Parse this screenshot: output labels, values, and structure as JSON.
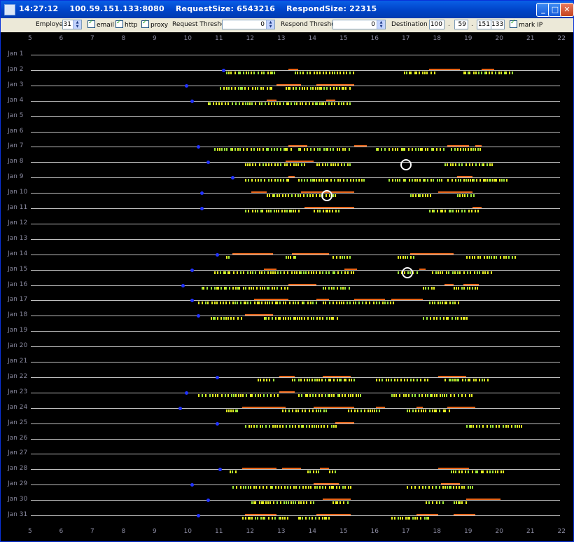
{
  "window": {
    "time": "14:27:12",
    "address": "100.59.151.133:8080",
    "request_size": "RequestSize: 6543216",
    "respond_size": "RespondSize: 22315",
    "minimize_label": "_",
    "maximize_label": "□",
    "close_label": "✕"
  },
  "toolbar": {
    "employee_label": "Employee",
    "employee_value": "31",
    "email_label": "email",
    "http_label": "http",
    "proxy_label": "proxy",
    "request_threshold_label": "Request Threshold",
    "request_threshold_value": "0",
    "respond_threshold_label": "Respond Threshold",
    "respond_threshold_value": "0",
    "destination_ip_label": "Destination IP",
    "ip_octets": [
      "100",
      "59",
      "151",
      "133"
    ],
    "ip_separator": ".",
    "mark_ip_label": "mark IP"
  },
  "axis": {
    "hours": [
      "5",
      "6",
      "7",
      "8",
      "9",
      "10",
      "11",
      "12",
      "13",
      "14",
      "15",
      "16",
      "17",
      "18",
      "19",
      "20",
      "21",
      "22"
    ]
  },
  "days": [
    {
      "label": "Jan 1",
      "start": null,
      "segs": [],
      "events": []
    },
    {
      "label": "Jan 2",
      "start": 11.2,
      "segs": [
        [
          13.3,
          13.6
        ],
        [
          17.8,
          18.8
        ],
        [
          19.5,
          19.9
        ]
      ],
      "events": [
        [
          11.3,
          12.9
        ],
        [
          13.5,
          15.4
        ],
        [
          17.0,
          18.0
        ],
        [
          18.9,
          20.5
        ]
      ]
    },
    {
      "label": "Jan 3",
      "start": 10.0,
      "segs": [
        [
          12.9,
          13.7
        ],
        [
          14.2,
          15.4
        ]
      ],
      "events": [
        [
          11.1,
          12.8
        ],
        [
          13.2,
          15.3
        ]
      ]
    },
    {
      "label": "Jan 4",
      "start": 10.2,
      "segs": [
        [
          12.6,
          12.9
        ],
        [
          14.5,
          14.8
        ]
      ],
      "events": [
        [
          10.7,
          15.3
        ]
      ]
    },
    {
      "label": "Jan 5",
      "start": null,
      "segs": [],
      "events": []
    },
    {
      "label": "Jan 6",
      "start": null,
      "segs": [],
      "events": []
    },
    {
      "label": "Jan 7",
      "start": 10.4,
      "segs": [
        [
          13.3,
          13.9
        ],
        [
          15.4,
          15.8
        ],
        [
          18.4,
          19.1
        ],
        [
          19.3,
          19.5
        ]
      ],
      "events": [
        [
          10.9,
          13.4
        ],
        [
          13.6,
          15.3
        ],
        [
          16.1,
          18.3
        ],
        [
          18.5,
          19.5
        ]
      ]
    },
    {
      "label": "Jan 8",
      "start": 10.7,
      "segs": [
        [
          13.2,
          14.1
        ]
      ],
      "events": [
        [
          11.9,
          13.9
        ],
        [
          14.2,
          15.3
        ],
        [
          18.3,
          19.8
        ]
      ]
    },
    {
      "label": "Jan 9",
      "start": 11.5,
      "segs": [
        [
          13.3,
          13.5
        ],
        [
          18.7,
          19.2
        ]
      ],
      "events": [
        [
          11.9,
          13.3
        ],
        [
          13.6,
          15.7
        ],
        [
          16.5,
          18.2
        ],
        [
          18.4,
          20.3
        ]
      ]
    },
    {
      "label": "Jan 10",
      "start": 10.5,
      "segs": [
        [
          12.1,
          12.6
        ],
        [
          13.7,
          15.4
        ],
        [
          18.1,
          19.2
        ]
      ],
      "events": [
        [
          12.6,
          14.8
        ],
        [
          17.2,
          17.9
        ],
        [
          18.7,
          19.3
        ]
      ]
    },
    {
      "label": "Jan 11",
      "start": 10.5,
      "segs": [
        [
          13.8,
          15.4
        ],
        [
          19.2,
          19.5
        ]
      ],
      "events": [
        [
          11.9,
          13.6
        ],
        [
          14.1,
          14.9
        ],
        [
          17.8,
          19.4
        ]
      ]
    },
    {
      "label": "Jan 12",
      "start": null,
      "segs": [],
      "events": []
    },
    {
      "label": "Jan 13",
      "start": null,
      "segs": [],
      "events": []
    },
    {
      "label": "Jan 14",
      "start": 11.0,
      "segs": [
        [
          11.5,
          12.8
        ],
        [
          13.4,
          14.6
        ],
        [
          17.2,
          18.6
        ]
      ],
      "events": [
        [
          11.3,
          11.4
        ],
        [
          13.2,
          13.5
        ],
        [
          14.7,
          15.3
        ],
        [
          16.8,
          17.3
        ],
        [
          19.0,
          20.6
        ]
      ]
    },
    {
      "label": "Jan 15",
      "start": 10.2,
      "segs": [
        [
          12.5,
          12.9
        ],
        [
          15.1,
          15.5
        ],
        [
          17.5,
          17.7
        ]
      ],
      "events": [
        [
          10.9,
          15.4
        ],
        [
          16.8,
          17.4
        ],
        [
          17.9,
          19.8
        ]
      ]
    },
    {
      "label": "Jan 16",
      "start": 9.9,
      "segs": [
        [
          13.3,
          14.2
        ],
        [
          18.3,
          18.6
        ],
        [
          18.9,
          19.4
        ]
      ],
      "events": [
        [
          10.5,
          13.3
        ],
        [
          14.4,
          15.3
        ],
        [
          17.6,
          18.0
        ],
        [
          18.6,
          19.4
        ]
      ]
    },
    {
      "label": "Jan 17",
      "start": 10.2,
      "segs": [
        [
          12.2,
          13.3
        ],
        [
          14.2,
          14.6
        ],
        [
          15.4,
          16.4
        ],
        [
          16.6,
          17.6
        ]
      ],
      "events": [
        [
          10.4,
          14.2
        ],
        [
          14.4,
          16.7
        ],
        [
          17.8,
          18.8
        ]
      ]
    },
    {
      "label": "Jan 18",
      "start": 10.4,
      "segs": [
        [
          11.9,
          12.8
        ]
      ],
      "events": [
        [
          10.8,
          11.8
        ],
        [
          12.5,
          14.9
        ],
        [
          17.6,
          18.7
        ],
        [
          18.7,
          19.0
        ]
      ]
    },
    {
      "label": "Jan 19",
      "start": null,
      "segs": [],
      "events": []
    },
    {
      "label": "Jan 20",
      "start": null,
      "segs": [],
      "events": []
    },
    {
      "label": "Jan 21",
      "start": null,
      "segs": [],
      "events": []
    },
    {
      "label": "Jan 22",
      "start": 11.0,
      "segs": [
        [
          13.0,
          13.5
        ],
        [
          14.4,
          15.3
        ],
        [
          18.1,
          19.0
        ]
      ],
      "events": [
        [
          12.3,
          12.8
        ],
        [
          13.4,
          15.4
        ],
        [
          16.1,
          17.8
        ],
        [
          18.3,
          19.7
        ]
      ]
    },
    {
      "label": "Jan 23",
      "start": 10.0,
      "segs": [
        [
          13.0,
          13.5
        ]
      ],
      "events": [
        [
          10.4,
          13.0
        ],
        [
          13.6,
          15.6
        ],
        [
          16.6,
          19.2
        ]
      ]
    },
    {
      "label": "Jan 24",
      "start": 9.8,
      "segs": [
        [
          11.8,
          13.2
        ],
        [
          14.1,
          15.4
        ],
        [
          16.1,
          16.4
        ],
        [
          17.4,
          17.6
        ],
        [
          18.4,
          19.3
        ]
      ],
      "events": [
        [
          11.3,
          11.7
        ],
        [
          13.1,
          14.5
        ],
        [
          15.2,
          16.2
        ],
        [
          17.1,
          18.5
        ]
      ]
    },
    {
      "label": "Jan 25",
      "start": 11.0,
      "segs": [
        [
          14.8,
          15.4
        ]
      ],
      "events": [
        [
          11.9,
          14.9
        ],
        [
          19.0,
          20.8
        ]
      ]
    },
    {
      "label": "Jan 26",
      "start": null,
      "segs": [],
      "events": []
    },
    {
      "label": "Jan 27",
      "start": null,
      "segs": [],
      "events": []
    },
    {
      "label": "Jan 28",
      "start": 11.1,
      "segs": [
        [
          11.8,
          12.9
        ],
        [
          13.1,
          13.7
        ],
        [
          14.3,
          14.6
        ],
        [
          18.1,
          19.1
        ]
      ],
      "events": [
        [
          11.4,
          11.6
        ],
        [
          13.9,
          14.3
        ],
        [
          14.6,
          14.9
        ],
        [
          18.5,
          20.2
        ]
      ]
    },
    {
      "label": "Jan 29",
      "start": 10.2,
      "segs": [
        [
          14.1,
          14.9
        ],
        [
          18.2,
          18.8
        ]
      ],
      "events": [
        [
          11.5,
          15.3
        ],
        [
          17.1,
          19.2
        ]
      ]
    },
    {
      "label": "Jan 30",
      "start": 10.7,
      "segs": [
        [
          14.4,
          15.3
        ],
        [
          19.0,
          20.1
        ]
      ],
      "events": [
        [
          12.1,
          14.1
        ],
        [
          14.7,
          15.2
        ],
        [
          17.7,
          18.3
        ],
        [
          18.6,
          19.0
        ]
      ]
    },
    {
      "label": "Jan 31",
      "start": 10.4,
      "segs": [
        [
          11.9,
          12.9
        ],
        [
          14.2,
          15.3
        ],
        [
          17.4,
          18.1
        ],
        [
          18.6,
          19.3
        ]
      ],
      "events": [
        [
          11.8,
          13.3
        ],
        [
          13.6,
          14.6
        ],
        [
          16.6,
          17.8
        ]
      ]
    }
  ],
  "marked_events": [
    {
      "day": "Jan 8",
      "hour": 17.05
    },
    {
      "day": "Jan 10",
      "hour": 14.5
    },
    {
      "day": "Jan 15",
      "hour": 17.1
    }
  ],
  "colors": {
    "background": "#000000",
    "segment": "#e8661a",
    "event_a": "#e6f020",
    "event_b": "#9ee838",
    "start_marker": "#2233ff",
    "mark_ring": "#ffffff"
  }
}
